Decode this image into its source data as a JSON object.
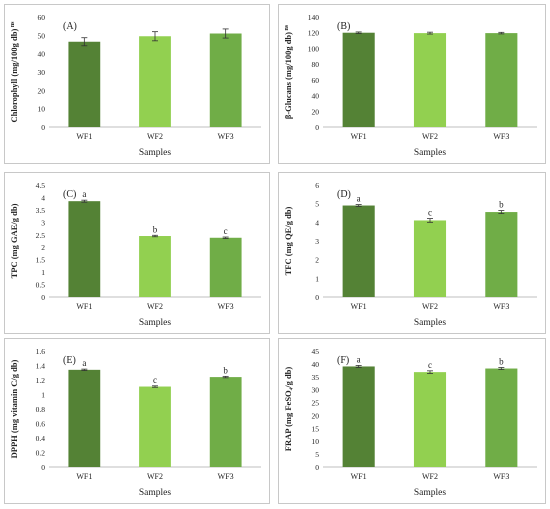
{
  "chart_data": [
    {
      "type": "bar",
      "panel_label": "(A)",
      "ylabel": "Chlorophyll (mg/100g db)",
      "ylabel_suffix": "ns",
      "xlabel": "Samples",
      "categories": [
        "WF1",
        "WF2",
        "WF3"
      ],
      "values": [
        46.5,
        49.5,
        51
      ],
      "errors": [
        2.2,
        2.5,
        2.5
      ],
      "letters": [
        "",
        "",
        ""
      ],
      "ylim": [
        0,
        60
      ],
      "yticks": [
        "0",
        "10",
        "20",
        "30",
        "40",
        "50",
        "60"
      ],
      "colors": [
        "#548235",
        "#92d050",
        "#70ad47"
      ]
    },
    {
      "type": "bar",
      "panel_label": "(B)",
      "ylabel": "β-Glucans (mg/100g db)",
      "ylabel_suffix": "ns",
      "xlabel": "Samples",
      "categories": [
        "WF1",
        "WF2",
        "WF3"
      ],
      "values": [
        120,
        119.5,
        119.5
      ],
      "errors": [
        1.0,
        1.2,
        1.0
      ],
      "letters": [
        "",
        "",
        ""
      ],
      "ylim": [
        0,
        140
      ],
      "yticks": [
        "0",
        "20",
        "40",
        "60",
        "80",
        "100",
        "120",
        "140"
      ],
      "colors": [
        "#548235",
        "#92d050",
        "#70ad47"
      ]
    },
    {
      "type": "bar",
      "panel_label": "(C)",
      "ylabel": "TPC (mg GAE/g db)",
      "ylabel_suffix": "",
      "xlabel": "Samples",
      "categories": [
        "WF1",
        "WF2",
        "WF3"
      ],
      "values": [
        3.85,
        2.45,
        2.38
      ],
      "errors": [
        0.04,
        0.03,
        0.03
      ],
      "letters": [
        "a",
        "b",
        "c"
      ],
      "ylim": [
        0,
        4.5
      ],
      "yticks": [
        "0",
        "0.5",
        "1",
        "1.5",
        "2",
        "2.5",
        "3",
        "3.5",
        "4",
        "4.5"
      ],
      "colors": [
        "#548235",
        "#92d050",
        "#70ad47"
      ]
    },
    {
      "type": "bar",
      "panel_label": "(D)",
      "ylabel": "TFC (mg QE/g db)",
      "ylabel_suffix": "",
      "xlabel": "Samples",
      "categories": [
        "WF1",
        "WF2",
        "WF3"
      ],
      "values": [
        4.9,
        4.1,
        4.55
      ],
      "errors": [
        0.05,
        0.1,
        0.08
      ],
      "letters": [
        "a",
        "c",
        "b"
      ],
      "ylim": [
        0,
        6
      ],
      "yticks": [
        "0",
        "1",
        "2",
        "3",
        "4",
        "5",
        "6"
      ],
      "colors": [
        "#548235",
        "#92d050",
        "#70ad47"
      ]
    },
    {
      "type": "bar",
      "panel_label": "(E)",
      "ylabel": "DPPH (mg vitamin C/g db)",
      "ylabel_suffix": "",
      "xlabel": "Samples",
      "categories": [
        "WF1",
        "WF2",
        "WF3"
      ],
      "values": [
        1.34,
        1.11,
        1.24
      ],
      "errors": [
        0.01,
        0.01,
        0.01
      ],
      "letters": [
        "a",
        "c",
        "b"
      ],
      "ylim": [
        0,
        1.6
      ],
      "yticks": [
        "0",
        "0.2",
        "0.4",
        "0.6",
        "0.8",
        "1",
        "1.2",
        "1.4",
        "1.6"
      ],
      "colors": [
        "#548235",
        "#92d050",
        "#70ad47"
      ]
    },
    {
      "type": "bar",
      "panel_label": "(F)",
      "ylabel": "FRAP (mg FeSO₄/g db)",
      "ylabel_suffix": "",
      "xlabel": "Samples",
      "categories": [
        "WF1",
        "WF2",
        "WF3"
      ],
      "values": [
        39,
        36.8,
        38.2
      ],
      "errors": [
        0.4,
        0.5,
        0.4
      ],
      "letters": [
        "a",
        "c",
        "b"
      ],
      "ylim": [
        0,
        45
      ],
      "yticks": [
        "0",
        "5",
        "10",
        "15",
        "20",
        "25",
        "30",
        "35",
        "40",
        "45"
      ],
      "colors": [
        "#548235",
        "#92d050",
        "#70ad47"
      ]
    }
  ]
}
